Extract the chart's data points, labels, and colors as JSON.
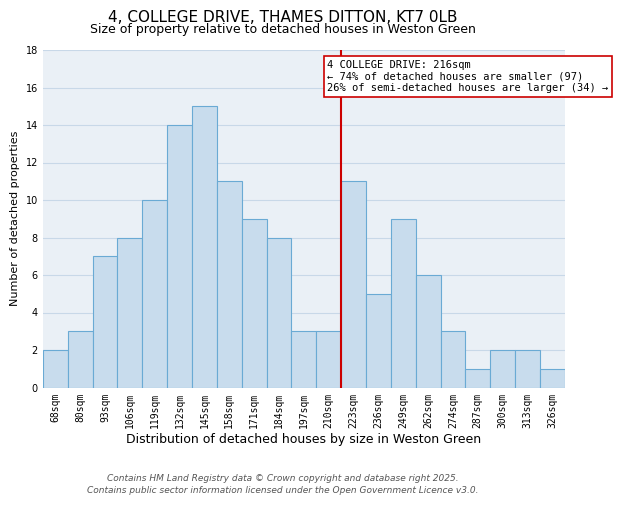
{
  "title": "4, COLLEGE DRIVE, THAMES DITTON, KT7 0LB",
  "subtitle": "Size of property relative to detached houses in Weston Green",
  "xlabel": "Distribution of detached houses by size in Weston Green",
  "ylabel": "Number of detached properties",
  "bar_labels": [
    "68sqm",
    "80sqm",
    "93sqm",
    "106sqm",
    "119sqm",
    "132sqm",
    "145sqm",
    "158sqm",
    "171sqm",
    "184sqm",
    "197sqm",
    "210sqm",
    "223sqm",
    "236sqm",
    "249sqm",
    "262sqm",
    "274sqm",
    "287sqm",
    "300sqm",
    "313sqm",
    "326sqm"
  ],
  "bar_values": [
    2,
    3,
    7,
    8,
    10,
    14,
    15,
    11,
    9,
    8,
    3,
    3,
    11,
    5,
    9,
    6,
    3,
    1,
    2,
    2,
    1
  ],
  "bar_color": "#c8dced",
  "bar_edgecolor": "#6aaad4",
  "vline_x": 11.5,
  "vline_color": "#cc0000",
  "annotation_line1": "4 COLLEGE DRIVE: 216sqm",
  "annotation_line2": "← 74% of detached houses are smaller (97)",
  "annotation_line3": "26% of semi-detached houses are larger (34) →",
  "ylim": [
    0,
    18
  ],
  "yticks": [
    0,
    2,
    4,
    6,
    8,
    10,
    12,
    14,
    16,
    18
  ],
  "grid_color": "#c8d8e8",
  "background_color": "#eaf0f6",
  "footer_line1": "Contains HM Land Registry data © Crown copyright and database right 2025.",
  "footer_line2": "Contains public sector information licensed under the Open Government Licence v3.0.",
  "title_fontsize": 11,
  "subtitle_fontsize": 9,
  "xlabel_fontsize": 9,
  "ylabel_fontsize": 8,
  "tick_fontsize": 7,
  "annotation_fontsize": 7.5,
  "footer_fontsize": 6.5
}
